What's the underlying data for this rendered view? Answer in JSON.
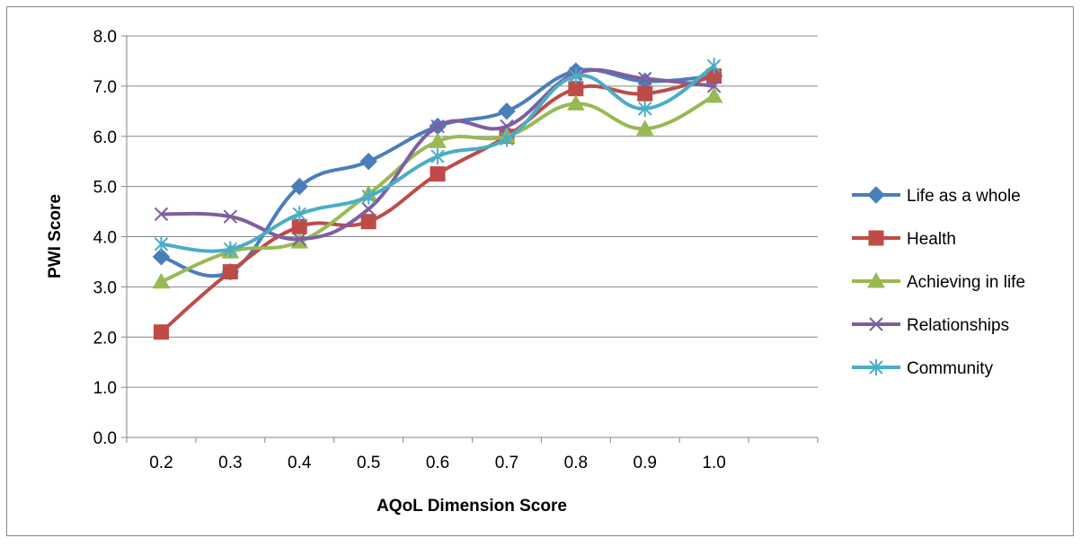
{
  "chart_data": {
    "type": "line",
    "title": "",
    "xlabel": "AQoL Dimension Score",
    "ylabel": "PWI Score",
    "categories": [
      "0.2",
      "0.3",
      "0.4",
      "0.5",
      "0.6",
      "0.7",
      "0.8",
      "0.9",
      "1.0"
    ],
    "ylim": [
      0,
      8
    ],
    "yticks": [
      "0.0",
      "1.0",
      "2.0",
      "3.0",
      "4.0",
      "5.0",
      "6.0",
      "7.0",
      "8.0"
    ],
    "grid": true,
    "legend_position": "right",
    "smooth": true,
    "series": [
      {
        "name": "Life as a whole",
        "color": "#4a7ebb",
        "marker": "diamond",
        "values": [
          3.6,
          3.3,
          5.0,
          5.5,
          6.2,
          6.5,
          7.3,
          7.1,
          7.2
        ]
      },
      {
        "name": "Health",
        "color": "#be4b48",
        "marker": "square",
        "values": [
          2.1,
          3.3,
          4.2,
          4.3,
          5.25,
          6.0,
          6.95,
          6.85,
          7.2
        ]
      },
      {
        "name": "Achieving in life",
        "color": "#98b954",
        "marker": "triangle",
        "values": [
          3.1,
          3.7,
          3.9,
          4.85,
          5.9,
          6.0,
          6.65,
          6.15,
          6.8
        ]
      },
      {
        "name": "Relationships",
        "color": "#7d5fa0",
        "marker": "x",
        "values": [
          4.45,
          4.4,
          3.95,
          4.55,
          6.2,
          6.2,
          7.25,
          7.15,
          7.0
        ]
      },
      {
        "name": "Community",
        "color": "#4bacc6",
        "marker": "star",
        "values": [
          3.85,
          3.75,
          4.45,
          4.8,
          5.6,
          5.95,
          7.2,
          6.55,
          7.4
        ]
      }
    ]
  }
}
